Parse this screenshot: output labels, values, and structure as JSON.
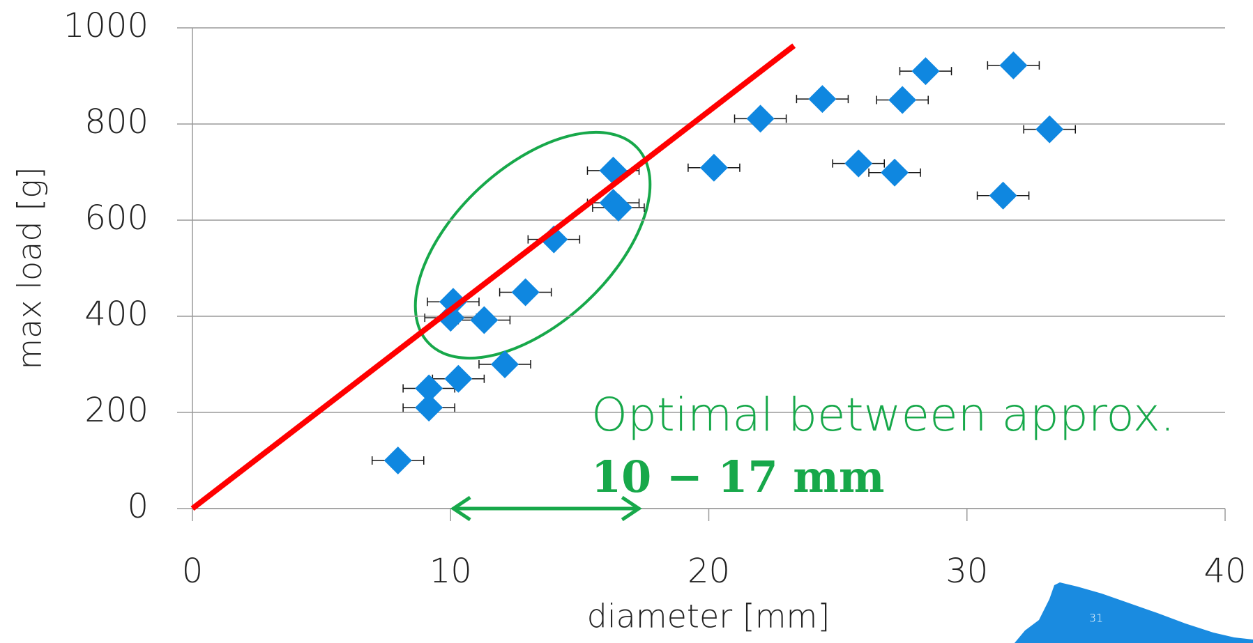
{
  "chart_data": {
    "type": "scatter",
    "xlabel": "diameter [mm]",
    "ylabel": "max load [g]",
    "x": [
      7.96,
      9.16,
      9.16,
      10.3,
      10.0,
      10.1,
      11.3,
      12.1,
      12.9,
      14.0,
      16.3,
      16.3,
      16.5,
      20.2,
      22.0,
      24.4,
      25.8,
      27.2,
      27.5,
      28.4,
      31.4,
      31.8,
      33.2
    ],
    "series": [
      {
        "color": "#0f87e0",
        "values": [
          100,
          210,
          250,
          270,
          397,
          430,
          392,
          300,
          450,
          560,
          703,
          636,
          626,
          709,
          811,
          852,
          718,
          699,
          850,
          910,
          651,
          922,
          789
        ],
        "xerr": [
          1,
          1,
          1,
          1,
          1,
          1,
          1,
          1,
          1,
          1,
          1,
          1,
          1,
          1,
          1,
          1,
          1,
          1,
          1,
          1,
          1,
          1,
          1
        ]
      }
    ],
    "trend_line": {
      "x": [
        0,
        23.3
      ],
      "y": [
        0,
        963
      ],
      "color": "#ff0000"
    },
    "annotation": {
      "line1": "Optimal between approx.",
      "line2": "10 − 17 mm",
      "color": "#17a84a"
    },
    "range_arrow": {
      "x": [
        10,
        17.4
      ],
      "color": "#17a84a"
    },
    "xlim": [
      0,
      40
    ],
    "xticks": [
      0,
      10,
      20,
      30,
      40
    ],
    "ylim": [
      0,
      1000
    ],
    "yticks": [
      0,
      200,
      400,
      600,
      800,
      1000
    ],
    "grid": true
  },
  "slide_number": "31"
}
